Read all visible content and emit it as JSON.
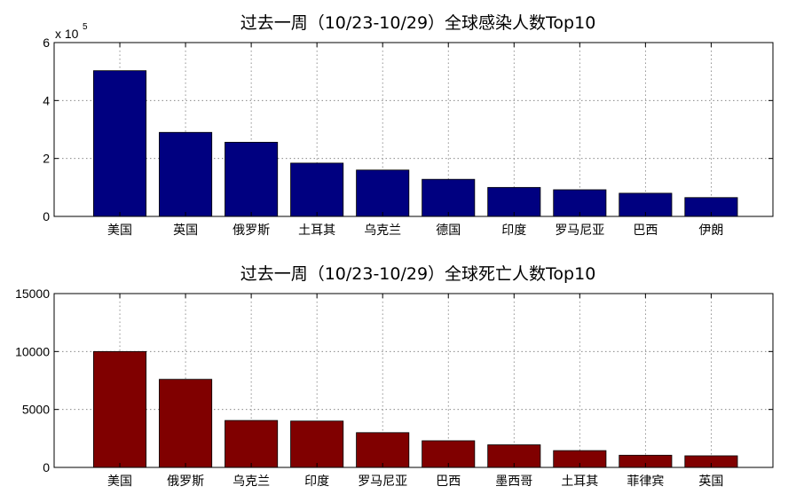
{
  "chart_data": [
    {
      "type": "bar",
      "title": "过去一周（10/23-10/29）全球感染人数Top10",
      "categories": [
        "美国",
        "英国",
        "俄罗斯",
        "土耳其",
        "乌克兰",
        "德国",
        "印度",
        "罗马尼亚",
        "巴西",
        "伊朗"
      ],
      "values": [
        503000,
        290000,
        256000,
        184000,
        160000,
        128000,
        100000,
        92000,
        80000,
        65000
      ],
      "ylim": [
        0,
        600000
      ],
      "yticks": [
        "0",
        "2",
        "4",
        "6"
      ],
      "ytick_values": [
        0,
        200000,
        400000,
        600000
      ],
      "exponent_label": "x 10",
      "exponent_power": "5",
      "xlabel": "",
      "ylabel": "",
      "grid": true,
      "color": "#000080"
    },
    {
      "type": "bar",
      "title": "过去一周（10/23-10/29）全球死亡人数Top10",
      "categories": [
        "美国",
        "俄罗斯",
        "乌克兰",
        "印度",
        "罗马尼亚",
        "巴西",
        "墨西哥",
        "土耳其",
        "菲律宾",
        "英国"
      ],
      "values": [
        10000,
        7600,
        4050,
        4000,
        3000,
        2300,
        1950,
        1450,
        1050,
        1000
      ],
      "ylim": [
        0,
        15000
      ],
      "yticks": [
        "0",
        "5000",
        "10000",
        "15000"
      ],
      "ytick_values": [
        0,
        5000,
        10000,
        15000
      ],
      "xlabel": "",
      "ylabel": "",
      "grid": true,
      "color": "#800000"
    }
  ]
}
